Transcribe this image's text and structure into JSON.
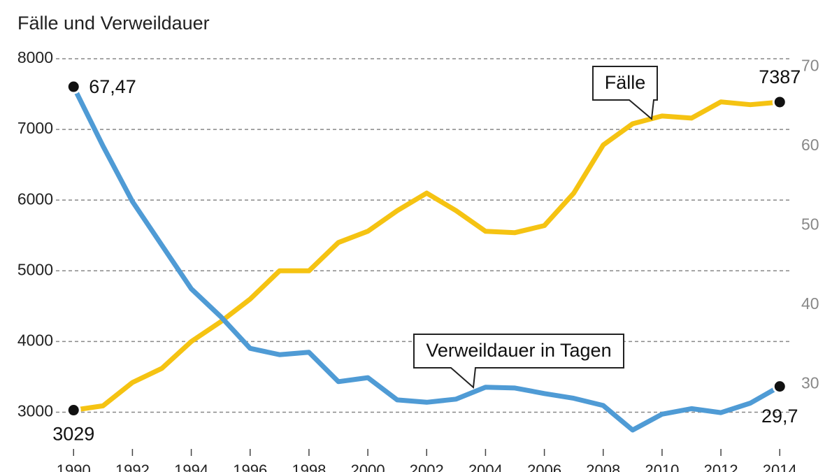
{
  "chart_data": {
    "type": "line",
    "subtitle": "Fälle und Verweildauer",
    "x": [
      1990,
      1991,
      1992,
      1993,
      1994,
      1995,
      1996,
      1997,
      1998,
      1999,
      2000,
      2001,
      2002,
      2003,
      2004,
      2005,
      2006,
      2007,
      2008,
      2009,
      2010,
      2011,
      2012,
      2013,
      2014
    ],
    "series": [
      {
        "name": "Fälle",
        "color": "#f5c312",
        "axis": "y",
        "values": [
          3029,
          3090,
          3420,
          3620,
          4000,
          4280,
          4600,
          5000,
          5000,
          5400,
          5560,
          5850,
          6100,
          5850,
          5560,
          5540,
          5640,
          6100,
          6780,
          7080,
          7190,
          7160,
          7390,
          7350,
          7387
        ]
      },
      {
        "name": "Verweildauer in Tagen",
        "color": "#4f9bd5",
        "axis": "y2",
        "values": [
          67.47,
          60,
          53,
          47.5,
          42,
          38.5,
          34.5,
          33.7,
          34,
          30.3,
          30.8,
          28,
          27.7,
          28.1,
          29.6,
          29.5,
          28.8,
          28.2,
          27.3,
          24.2,
          26.2,
          26.9,
          26.4,
          27.6,
          29.7
        ],
        "value_labels": [
          "67,47",
          null,
          null,
          null,
          null,
          null,
          null,
          null,
          null,
          null,
          null,
          null,
          null,
          null,
          null,
          null,
          null,
          null,
          null,
          null,
          null,
          null,
          null,
          null,
          "29,7"
        ]
      }
    ],
    "xlim": [
      1989.4,
      2014.35
    ],
    "xticks": [
      1990,
      1992,
      1994,
      1996,
      1998,
      2000,
      2002,
      2004,
      2006,
      2008,
      2010,
      2012,
      2014
    ],
    "ylim": [
      2500,
      8000
    ],
    "yticks": [
      3000,
      4000,
      5000,
      6000,
      7000,
      8000
    ],
    "y2lim": [
      22,
      71
    ],
    "y2ticks": [
      30,
      40,
      50,
      60,
      70
    ],
    "grid": true
  }
}
